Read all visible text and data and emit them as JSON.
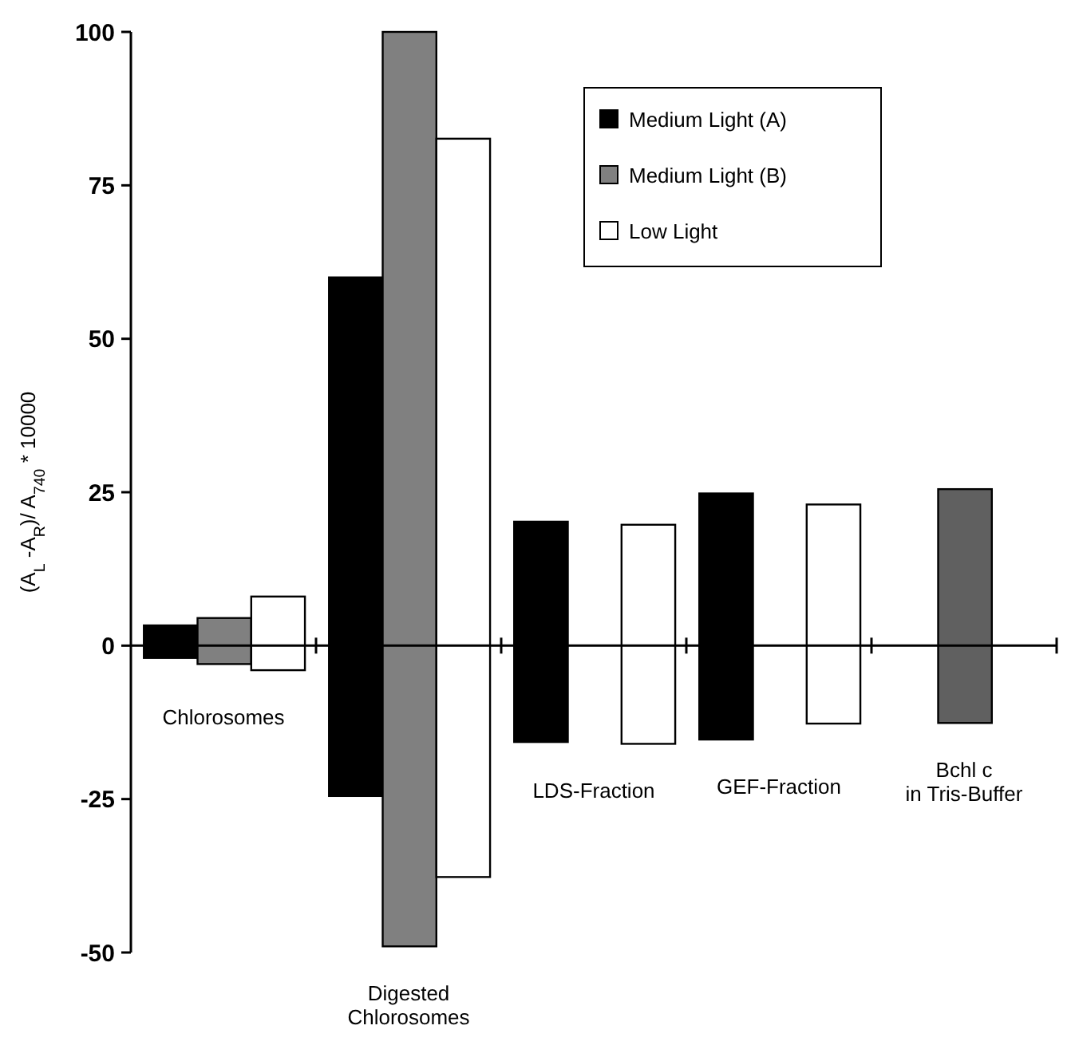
{
  "chart_data": {
    "type": "bar",
    "ylabel": "(A$_{L}$ -A$_{R}$)/ A$_{740}$ * 10000",
    "categories": [
      "Chlorosomes",
      "Digested\nChlorosomes",
      "LDS-Fraction",
      "GEF-Fraction",
      "Bchl c\nin Tris-Buffer"
    ],
    "series": [
      {
        "name": "Medium Light (A)",
        "color": "#000000",
        "base": [
          -2,
          -24.5,
          -15.7,
          -15.3,
          null
        ],
        "values": [
          5.3,
          84.5,
          35.9,
          40.1,
          null
        ]
      },
      {
        "name": "Medium Light (B)",
        "color": "#808080",
        "base": [
          -3,
          -49,
          null,
          null,
          null
        ],
        "values": [
          7.5,
          149,
          null,
          null,
          null
        ]
      },
      {
        "name": "Low Light",
        "color": "#ffffff",
        "base": [
          -4,
          -37.7,
          -16,
          -12.7,
          null
        ],
        "values": [
          12,
          120.3,
          35.7,
          35.7,
          null
        ]
      },
      {
        "color": "#606060",
        "base": [
          null,
          null,
          null,
          null,
          -12.6
        ],
        "values": [
          null,
          null,
          null,
          null,
          38.1
        ]
      }
    ],
    "ylim": [
      -50,
      100
    ],
    "yticks": [
      -50,
      -25,
      0,
      25,
      50,
      75,
      100
    ],
    "legend": "top right"
  }
}
